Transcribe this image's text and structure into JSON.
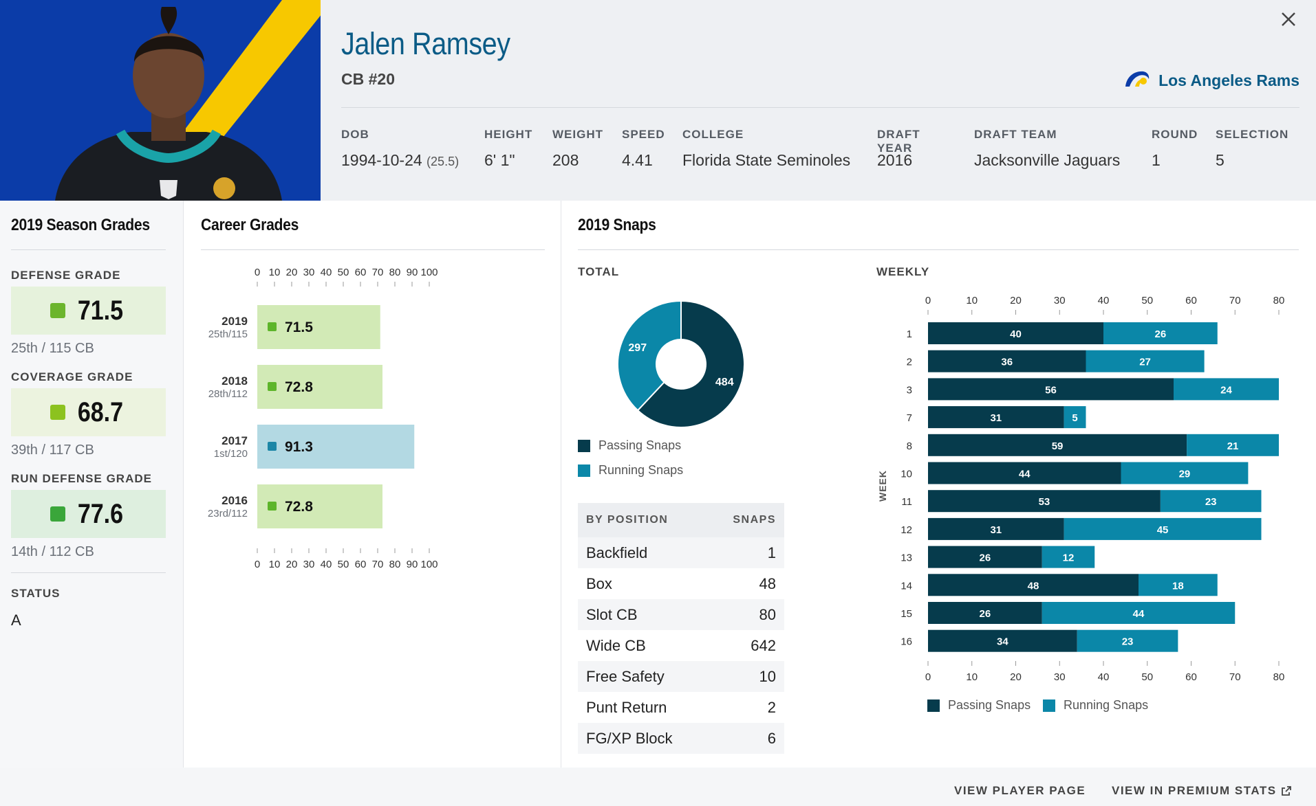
{
  "player": {
    "name": "Jalen Ramsey",
    "position": "CB #20",
    "team": "Los Angeles Rams"
  },
  "bio": [
    {
      "label": "DOB",
      "value": "1994-10-24",
      "extra": "(25.5)"
    },
    {
      "label": "HEIGHT",
      "value": "6' 1\""
    },
    {
      "label": "WEIGHT",
      "value": "208"
    },
    {
      "label": "SPEED",
      "value": "4.41"
    },
    {
      "label": "COLLEGE",
      "value": "Florida State Seminoles"
    },
    {
      "label": "DRAFT YEAR",
      "value": "2016"
    },
    {
      "label": "DRAFT TEAM",
      "value": "Jacksonville Jaguars"
    },
    {
      "label": "ROUND",
      "value": "1"
    },
    {
      "label": "SELECTION",
      "value": "5"
    }
  ],
  "season_grades": {
    "title": "2019 Season Grades",
    "grades": [
      {
        "label": "DEFENSE GRADE",
        "value": "71.5",
        "rank": "25th / 115 CB",
        "color": "#6cb52d",
        "bg": "#e6f2dc"
      },
      {
        "label": "COVERAGE GRADE",
        "value": "68.7",
        "rank": "39th / 117 CB",
        "color": "#8cc21f",
        "bg": "#ecf3df"
      },
      {
        "label": "RUN DEFENSE GRADE",
        "value": "77.6",
        "rank": "14th / 112 CB",
        "color": "#3aa63a",
        "bg": "#deefdf"
      }
    ],
    "status_label": "STATUS",
    "status_value": "A"
  },
  "career": {
    "title": "Career Grades"
  },
  "snaps": {
    "title": "2019 Snaps",
    "total_label": "TOTAL",
    "weekly_label": "WEEKLY",
    "week_axis_label": "WEEK",
    "legend": [
      "Passing Snaps",
      "Running Snaps"
    ],
    "colors": {
      "passing": "#063b4c",
      "running": "#0b87a8"
    },
    "table_header": {
      "position": "BY POSITION",
      "snaps": "SNAPS"
    },
    "by_position": [
      {
        "position": "Backfield",
        "snaps": "1"
      },
      {
        "position": "Box",
        "snaps": "48"
      },
      {
        "position": "Slot CB",
        "snaps": "80"
      },
      {
        "position": "Wide CB",
        "snaps": "642"
      },
      {
        "position": "Free Safety",
        "snaps": "10"
      },
      {
        "position": "Punt Return",
        "snaps": "2"
      },
      {
        "position": "FG/XP Block",
        "snaps": "6"
      }
    ]
  },
  "footer": {
    "player_page": "VIEW PLAYER PAGE",
    "premium": "VIEW IN PREMIUM STATS"
  },
  "chart_data": [
    {
      "type": "bar",
      "orientation": "horizontal",
      "categories": [
        "2019",
        "2018",
        "2017",
        "2016"
      ],
      "sublabels": [
        "25th/115",
        "28th/112",
        "1st/120",
        "23rd/112"
      ],
      "values": [
        71.5,
        72.8,
        91.3,
        72.8
      ],
      "bar_colors": [
        "#d2eab6",
        "#d2eab6",
        "#b3d9e3",
        "#d2eab6"
      ],
      "marker_colors": [
        "#5db52a",
        "#5db52a",
        "#1c86a6",
        "#5db52a"
      ],
      "xlim": [
        0,
        100
      ],
      "xticks": [
        0,
        10,
        20,
        30,
        40,
        50,
        60,
        70,
        80,
        90,
        100
      ]
    },
    {
      "type": "pie",
      "donut": true,
      "labels": [
        "Passing Snaps",
        "Running Snaps"
      ],
      "values": [
        484,
        297
      ]
    },
    {
      "type": "bar",
      "orientation": "horizontal",
      "stacked": true,
      "categories": [
        "1",
        "2",
        "3",
        "7",
        "8",
        "10",
        "11",
        "12",
        "13",
        "14",
        "15",
        "16"
      ],
      "ylabel": "WEEK",
      "xlim": [
        0,
        80
      ],
      "xticks": [
        0,
        10,
        20,
        30,
        40,
        50,
        60,
        70,
        80
      ],
      "series": [
        {
          "name": "Passing Snaps",
          "values": [
            40,
            36,
            56,
            31,
            59,
            44,
            53,
            31,
            26,
            48,
            26,
            34
          ]
        },
        {
          "name": "Running Snaps",
          "values": [
            26,
            27,
            24,
            5,
            21,
            29,
            23,
            45,
            12,
            18,
            44,
            23
          ]
        }
      ]
    }
  ]
}
